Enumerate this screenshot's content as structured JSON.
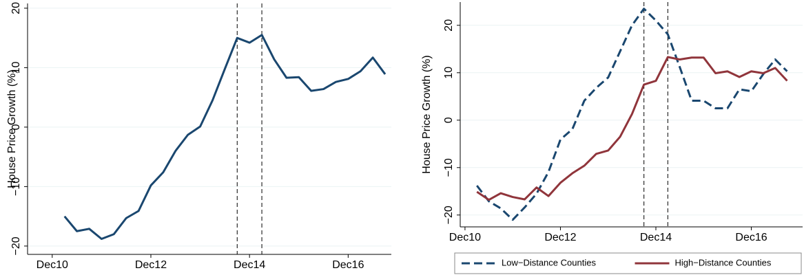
{
  "chart_data": [
    {
      "type": "line",
      "ylabel": "House Price Growth (%)",
      "color": "#1a476f",
      "x": [
        1,
        2,
        3,
        4,
        5,
        6,
        7,
        8,
        9,
        10,
        11,
        12,
        13,
        14,
        15,
        16,
        17,
        18,
        19,
        20,
        21,
        22,
        23,
        24,
        25,
        26,
        27
      ],
      "values": [
        -15.0,
        -17.5,
        -17.1,
        -18.8,
        -18.0,
        -15.3,
        -14.1,
        -9.8,
        -7.6,
        -4.0,
        -1.3,
        0.1,
        4.5,
        9.8,
        15.0,
        14.2,
        15.5,
        11.4,
        8.3,
        8.4,
        6.1,
        6.4,
        7.6,
        8.1,
        9.4,
        11.7,
        8.9
      ],
      "xlim": [
        -2,
        27.5
      ],
      "ylim": [
        -21.4,
        20.8
      ],
      "xticks": [
        {
          "value": 0,
          "label": "Dec10"
        },
        {
          "value": 8,
          "label": "Dec12"
        },
        {
          "value": 16,
          "label": "Dec14"
        },
        {
          "value": 24,
          "label": "Dec16"
        }
      ],
      "yticks": [
        {
          "value": -20,
          "label": "−20"
        },
        {
          "value": -10,
          "label": "−10"
        },
        0,
        10,
        20
      ],
      "vlines": [
        15,
        17
      ],
      "grid": true
    },
    {
      "type": "line",
      "ylabel": "House Price Growth (%)",
      "x": [
        1,
        2,
        3,
        4,
        5,
        6,
        7,
        8,
        9,
        10,
        11,
        12,
        13,
        14,
        15,
        16,
        17,
        18,
        19,
        20,
        21,
        22,
        23,
        24,
        25,
        26,
        27
      ],
      "series": [
        {
          "name": "Low−Distance Counties",
          "color": "#1a476f",
          "dash": true,
          "values": [
            -13.8,
            -17.1,
            -18.6,
            -21.0,
            -18.4,
            -15.5,
            -10.9,
            -4.1,
            -1.9,
            4.1,
            6.8,
            9.0,
            14.5,
            20.0,
            23.5,
            21.0,
            18.1,
            11.2,
            4.1,
            4.1,
            2.5,
            2.5,
            6.5,
            6.1,
            9.7,
            12.8,
            10.3
          ]
        },
        {
          "name": "High−Distance Counties",
          "color": "#90353b",
          "dash": false,
          "values": [
            -15.1,
            -16.8,
            -15.4,
            -16.2,
            -16.7,
            -14.2,
            -16.0,
            -13.2,
            -11.2,
            -9.6,
            -7.1,
            -6.4,
            -3.5,
            1.3,
            7.5,
            8.3,
            13.3,
            12.8,
            13.2,
            13.2,
            9.9,
            10.3,
            9.1,
            10.3,
            9.9,
            11.0,
            8.3
          ]
        }
      ],
      "xlim": [
        -0.4,
        28.3
      ],
      "ylim": [
        -22.5,
        24.9
      ],
      "xticks": [
        {
          "value": 0,
          "label": "Dec10"
        },
        {
          "value": 8,
          "label": "Dec12"
        },
        {
          "value": 16,
          "label": "Dec14"
        },
        {
          "value": 24,
          "label": "Dec16"
        }
      ],
      "yticks": [
        {
          "value": -20,
          "label": "−20"
        },
        {
          "value": -10,
          "label": "−10"
        },
        0,
        10,
        20
      ],
      "vlines": [
        15,
        17
      ],
      "grid": true,
      "legend": "bottom"
    }
  ]
}
